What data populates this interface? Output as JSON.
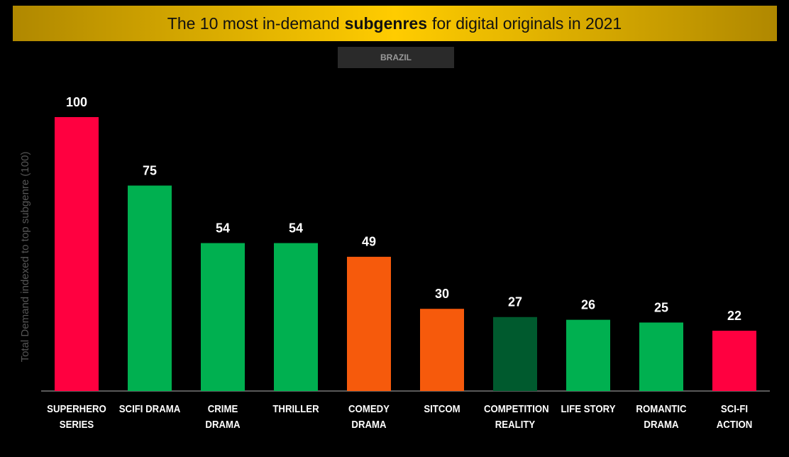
{
  "chart_data": {
    "type": "bar",
    "title": [
      "The 10 most in-demand",
      "subgenres",
      "for digital originals in 2021"
    ],
    "subtitle": "BRAZIL",
    "y_label": "Total Demand indexed to top subgenre (100)",
    "categories": [
      "SUPERHERO SERIES",
      "SCIFI DRAMA",
      "CRIME DRAMA",
      "THRILLER",
      "COMEDY DRAMA",
      "SITCOM",
      "COMPETITION REALITY",
      "LIFE STORY",
      "ROMANTIC DRAMA",
      "SCI-FI ACTION"
    ],
    "values": [
      100,
      75,
      54,
      54,
      49,
      30,
      27,
      26,
      25,
      22
    ],
    "colors": [
      "#ff0040",
      "#00b050",
      "#00b050",
      "#00b050",
      "#f65a0c",
      "#f65a0c",
      "#005a2e",
      "#00b050",
      "#00b050",
      "#ff0040"
    ],
    "ylim": [
      0,
      100
    ]
  }
}
